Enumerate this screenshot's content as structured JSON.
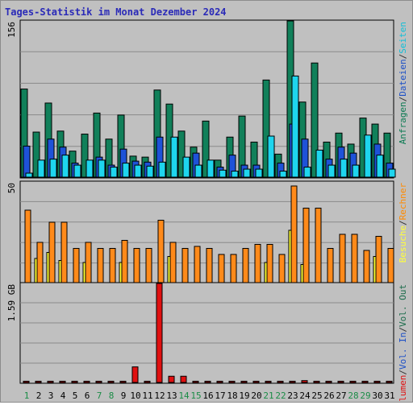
{
  "chart_data": [
    {
      "type": "bar",
      "title": "Tages-Statistik im Monat Dezember 2024",
      "scale_label": "156",
      "ylim": [
        0,
        156
      ],
      "categories": [
        "1",
        "2",
        "3",
        "4",
        "5",
        "6",
        "7",
        "8",
        "9",
        "10",
        "11",
        "12",
        "13",
        "14",
        "15",
        "16",
        "17",
        "18",
        "19",
        "20",
        "21",
        "22",
        "23",
        "24",
        "25",
        "26",
        "27",
        "28",
        "29",
        "30",
        "31"
      ],
      "weekend_days": [
        "1",
        "7",
        "8",
        "14",
        "15",
        "21",
        "22",
        "28",
        "29"
      ],
      "right_label": [
        {
          "text": "Anfragen",
          "color": "#0b7a52"
        },
        {
          "text": "/",
          "color": "#333333"
        },
        {
          "text": "Dateien",
          "color": "#1b4fc7"
        },
        {
          "text": "/",
          "color": "#333333"
        },
        {
          "text": "Seiten",
          "color": "#10bfd8"
        }
      ],
      "series": [
        {
          "name": "Anfragen",
          "color": "#11805a",
          "values": [
            88,
            45,
            74,
            46,
            26,
            43,
            64,
            38,
            62,
            21,
            20,
            87,
            73,
            46,
            30,
            56,
            17,
            40,
            61,
            35,
            97,
            23,
            156,
            75,
            114,
            35,
            44,
            33,
            59,
            53,
            44
          ]
        },
        {
          "name": "Dateien",
          "color": "#1e52d8",
          "values": [
            31,
            0,
            38,
            30,
            14,
            0,
            20,
            12,
            28,
            16,
            15,
            40,
            0,
            0,
            24,
            0,
            10,
            22,
            12,
            12,
            0,
            14,
            53,
            38,
            0,
            18,
            30,
            24,
            0,
            33,
            14
          ]
        },
        {
          "name": "Seiten",
          "color": "#1ed5ee",
          "values": [
            4,
            17,
            18,
            22,
            12,
            17,
            17,
            10,
            14,
            12,
            11,
            15,
            40,
            20,
            12,
            17,
            7,
            6,
            8,
            8,
            41,
            6,
            101,
            10,
            27,
            12,
            18,
            12,
            42,
            22,
            8
          ]
        }
      ]
    },
    {
      "type": "bar",
      "scale_label": "50",
      "ylim": [
        0,
        50
      ],
      "right_label": [
        {
          "text": "Besuche",
          "color": "#ffff3c"
        },
        {
          "text": "/",
          "color": "#333333"
        },
        {
          "text": "Rechner",
          "color": "#ff8a00"
        }
      ],
      "series": [
        {
          "name": "Besuche",
          "color": "#ffff33",
          "values": [
            0,
            12,
            15,
            11,
            0,
            10,
            0,
            0,
            10,
            0,
            0,
            0,
            13,
            0,
            0,
            0,
            0,
            0,
            0,
            0,
            10,
            0,
            26,
            9,
            0,
            0,
            0,
            0,
            0,
            13,
            0
          ]
        },
        {
          "name": "Rechner",
          "color": "#ff8a1a",
          "values": [
            36,
            20,
            30,
            30,
            17,
            20,
            17,
            17,
            21,
            17,
            17,
            31,
            20,
            17,
            18,
            17,
            14,
            14,
            17,
            19,
            19,
            14,
            48,
            37,
            37,
            17,
            24,
            24,
            16,
            23,
            17
          ]
        }
      ]
    },
    {
      "type": "bar",
      "scale_label": "1.59 GB",
      "ylim": [
        0,
        1.59
      ],
      "unit": "GB",
      "right_label": [
        {
          "text": "Volumen",
          "color": "#e01010"
        },
        {
          "text": "/",
          "color": "#333333"
        },
        {
          "text": "Vol. In",
          "color": "#1b4fc7"
        },
        {
          "text": "/",
          "color": "#333333"
        },
        {
          "text": "Vol. Out",
          "color": "#1a6b4a"
        }
      ],
      "series": [
        {
          "name": "Volumen",
          "color": "#e01010",
          "values": [
            0.02,
            0.02,
            0.02,
            0.02,
            0.02,
            0.02,
            0.02,
            0.02,
            0.02,
            0.25,
            0.02,
            1.59,
            0.1,
            0.1,
            0.02,
            0.02,
            0.02,
            0.02,
            0.02,
            0.02,
            0.02,
            0.02,
            0.02,
            0.03,
            0.02,
            0.02,
            0.02,
            0.02,
            0.02,
            0.02,
            0.02
          ]
        }
      ]
    }
  ]
}
